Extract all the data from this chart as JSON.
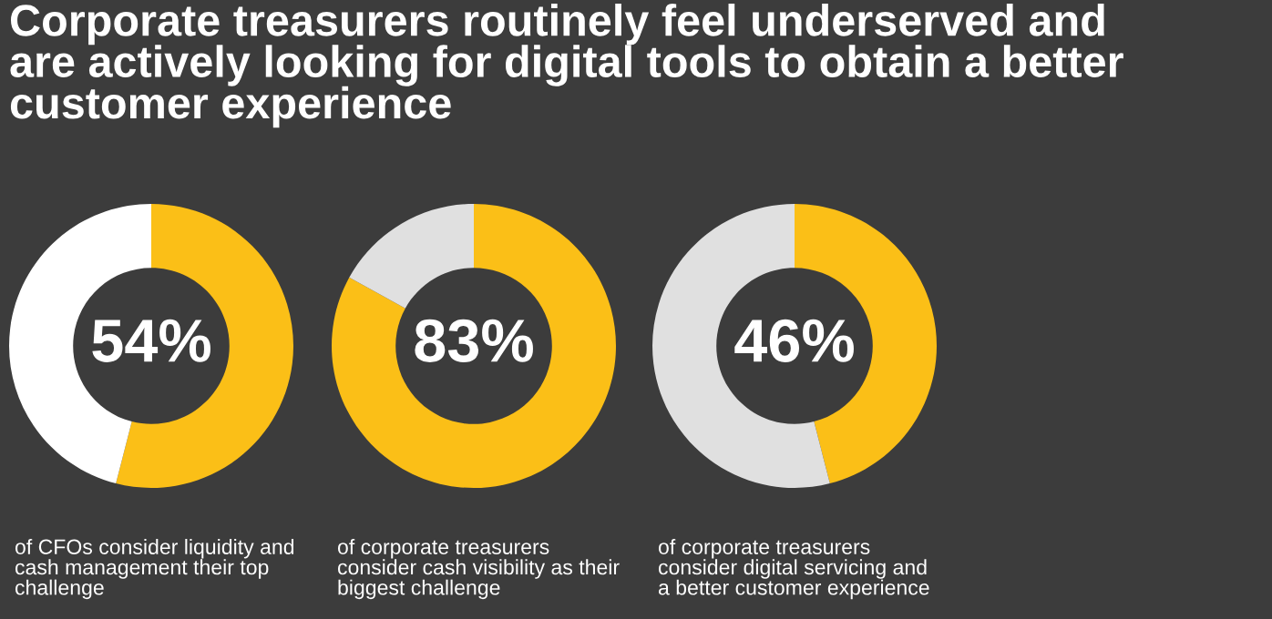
{
  "chart_data": [
    {
      "type": "donut",
      "title": "Corporate treasurers routinely feel underserved and\nare actively looking for digital tools to obtain a better\ncustomer experience",
      "categories": [
        null,
        null
      ],
      "values": [
        54,
        46
      ],
      "colors": [
        "#fbbf17",
        "#ffffff"
      ],
      "value_labels": [
        "54%",
        null
      ],
      "annotations": [
        "of CFOs consider liquidity and\ncash management their top\nchallenge"
      ]
    },
    {
      "type": "donut",
      "categories": [
        null,
        null
      ],
      "values": [
        83,
        17
      ],
      "colors": [
        "#fbbf17",
        "#e0e0e0"
      ],
      "value_labels": [
        "83%",
        null
      ],
      "annotations": [
        "of corporate treasurers\nconsider cash visibility as their\nbiggest challenge"
      ]
    },
    {
      "type": "donut",
      "categories": [
        null,
        null
      ],
      "values": [
        46,
        54
      ],
      "colors": [
        "#fbbf17",
        "#e0e0e0"
      ],
      "value_labels": [
        "46%",
        null
      ],
      "annotations": [
        "of corporate treasurers\nconsider digital servicing and\na better customer experience"
      ]
    }
  ]
}
